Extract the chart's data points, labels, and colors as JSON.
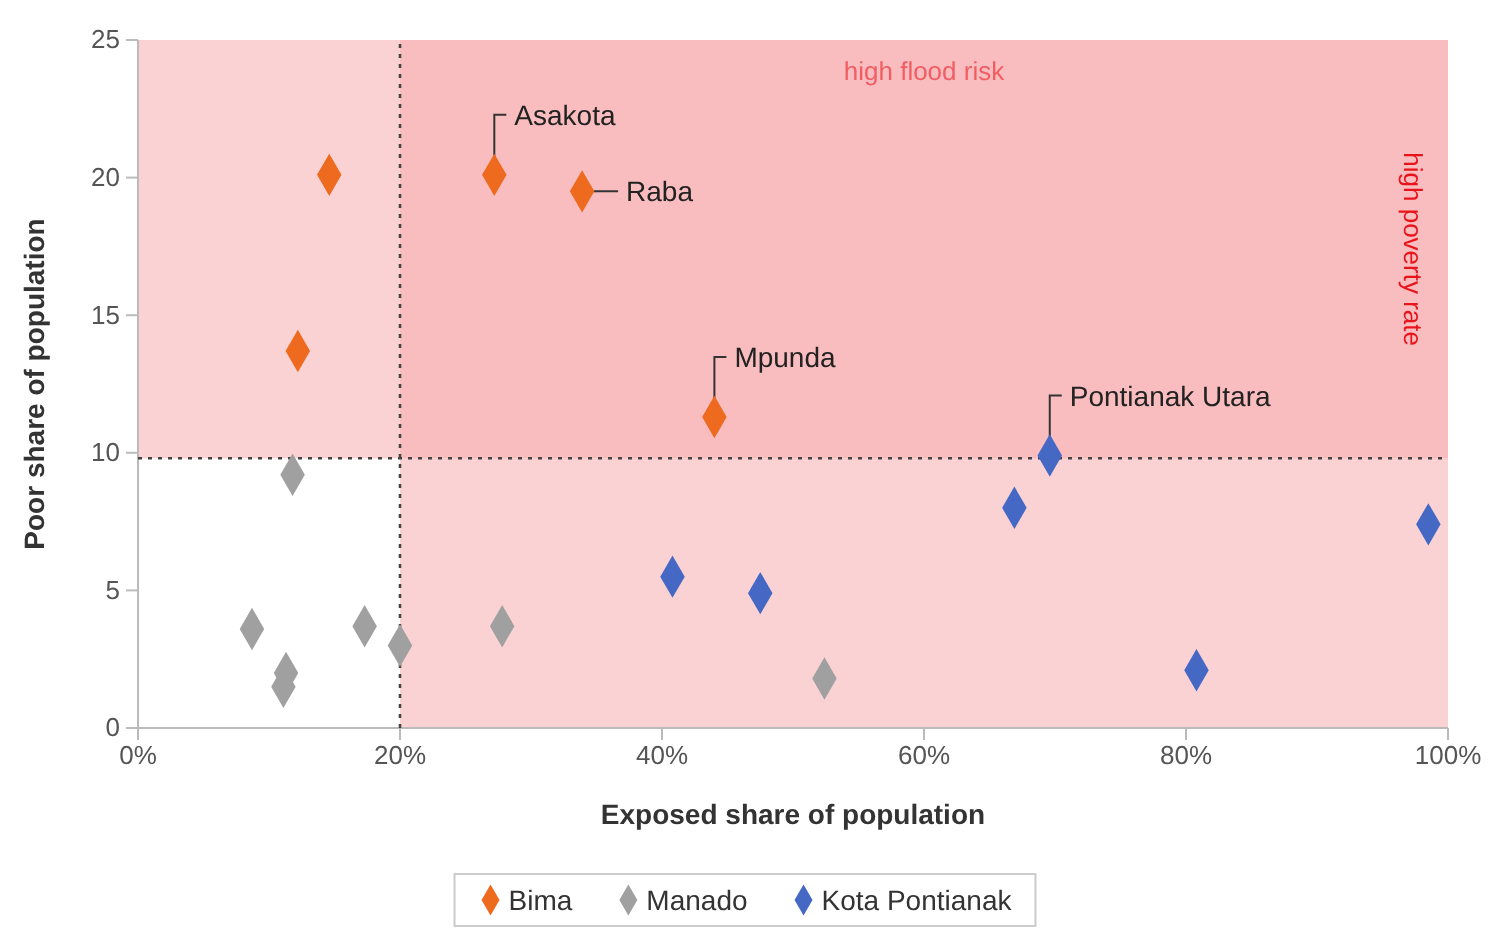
{
  "chart_data": {
    "type": "scatter",
    "xlabel": "Exposed share of population",
    "ylabel": "Poor share of population",
    "xlim": [
      0,
      100
    ],
    "xticks": [
      {
        "value": 0,
        "label": "0%"
      },
      {
        "value": 20,
        "label": "20%"
      },
      {
        "value": 40,
        "label": "40%"
      },
      {
        "value": 60,
        "label": "60%"
      },
      {
        "value": 80,
        "label": "80%"
      },
      {
        "value": 100,
        "label": "100%"
      }
    ],
    "ylim": [
      0,
      25
    ],
    "yticks": [
      0,
      5,
      10,
      15,
      20,
      25
    ],
    "marker": "diamond",
    "grid": false,
    "legend": "bottom",
    "series": [
      {
        "name": "Bima",
        "color": "#ee6a1f",
        "x": [
          14.6,
          12.2,
          27.2,
          33.9,
          44.0
        ],
        "values": [
          20.1,
          13.7,
          20.1,
          19.5,
          11.3
        ]
      },
      {
        "name": "Manado",
        "color": "#a0a0a0",
        "x": [
          11.8,
          8.7,
          17.3,
          20.0,
          27.8,
          11.3,
          11.1,
          52.4
        ],
        "values": [
          9.2,
          3.6,
          3.7,
          3.0,
          3.7,
          2.0,
          1.5,
          1.8
        ]
      },
      {
        "name": "Kota Pontianak",
        "color": "#4468c4",
        "x": [
          40.8,
          47.5,
          69.6,
          66.9,
          80.8,
          98.5
        ],
        "values": [
          5.5,
          4.9,
          9.9,
          8.0,
          2.1,
          7.4
        ]
      }
    ],
    "bands": [
      {
        "axis": "x",
        "from": 20,
        "to": 100,
        "label": "high flood risk",
        "color": "#f7a6aa"
      },
      {
        "axis": "y",
        "from": 9.8,
        "to": 25,
        "label": "high poverty rate",
        "color": "#f7a6aa"
      }
    ],
    "ref_lines": [
      {
        "axis": "x",
        "value": 20,
        "line_style": "dotted",
        "color": "#444444"
      },
      {
        "axis": "y",
        "value": 9.8,
        "line_style": "dotted",
        "color": "#444444"
      }
    ],
    "annotations": [
      {
        "text": "Asakota",
        "x": 27.2,
        "y": 20.1
      },
      {
        "text": "Raba",
        "x": 33.9,
        "y": 19.5
      },
      {
        "text": "Mpunda",
        "x": 44.0,
        "y": 11.3
      },
      {
        "text": "Pontianak Utara",
        "x": 69.6,
        "y": 9.9
      }
    ]
  }
}
